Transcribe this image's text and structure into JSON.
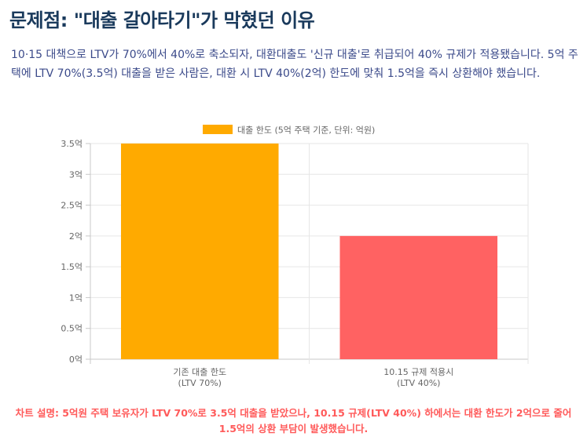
{
  "page": {
    "title": "문제점: \"대출 갈아타기\"가 막혔던 이유",
    "description": "10·15 대책으로 LTV가 70%에서 40%로 축소되자, 대환대출도 '신규 대출'로 취급되어 40% 규제가 적용됐습니다. 5억 주택에 LTV 70%(3.5억) 대출을 받은 사람은, 대환 시 LTV 40%(2억) 한도에 맞춰 1.5억을 즉시 상환해야 했습니다.",
    "caption": "차트 설명: 5억원 주택 보유자가 LTV 70%로 3.5억 대출을 받았으나, 10.15 규제(LTV 40%) 하에서는 대환 한도가 2억으로 줄어 1.5억의 상환 부담이 발생했습니다."
  },
  "chart_data": {
    "type": "bar",
    "categories": [
      [
        "기존 대출 한도",
        "(LTV 70%)"
      ],
      [
        "10.15 규제 적용시",
        "(LTV 40%)"
      ]
    ],
    "series": [
      {
        "name": "대출 한도 (5억 주택 기준, 단위: 억원)",
        "values": [
          3.5,
          2
        ],
        "colors": [
          "#ffaa00",
          "#ff6262"
        ]
      }
    ],
    "legend_color": "#ffaa00",
    "legend_position": "top",
    "ylim": [
      0,
      3.5
    ],
    "yticks": [
      "0억",
      "0.5억",
      "1억",
      "1.5억",
      "2억",
      "2.5억",
      "3억",
      "3.5억"
    ],
    "grid": true
  }
}
